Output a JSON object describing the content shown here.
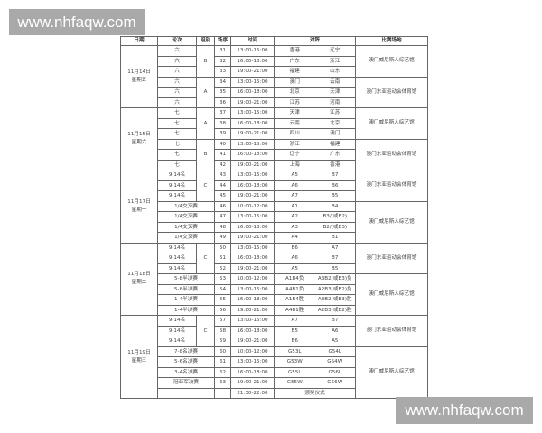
{
  "watermarks": [
    "www.nhfaqw.com",
    "www.nhfaqw.com"
  ],
  "headers": {
    "date": "日期",
    "round": "轮次",
    "group": "组别",
    "no": "场序",
    "time": "时间",
    "match": "对阵",
    "venue": "比赛场地"
  },
  "venues": [
    "澳门威尼斯人综艺馆",
    "澳门东亚运动会体育馆"
  ],
  "days": [
    {
      "date": "11月14日",
      "weekday": "星期五",
      "matches": [
        {
          "round": "六",
          "group": "B",
          "no": "31",
          "time": "13:00-15:00",
          "home": "香港",
          "away": "辽宁",
          "venue": 0
        },
        {
          "round": "六",
          "group": "B",
          "no": "32",
          "time": "16:00-18:00",
          "home": "广东",
          "away": "浙江",
          "venue": 0
        },
        {
          "round": "六",
          "group": "B",
          "no": "33",
          "time": "19:00-21:00",
          "home": "福建",
          "away": "山东",
          "venue": 0
        },
        {
          "round": "六",
          "group": "A",
          "no": "34",
          "time": "13:00-15:00",
          "home": "澳门",
          "away": "云南",
          "venue": 1
        },
        {
          "round": "六",
          "group": "A",
          "no": "35",
          "time": "16:00-18:00",
          "home": "北京",
          "away": "天津",
          "venue": 1
        },
        {
          "round": "六",
          "group": "A",
          "no": "36",
          "time": "19:00-21:00",
          "home": "江苏",
          "away": "河南",
          "venue": 1
        }
      ]
    },
    {
      "date": "11月15日",
      "weekday": "星期六",
      "matches": [
        {
          "round": "七",
          "group": "A",
          "no": "37",
          "time": "13:00-15:00",
          "home": "天津",
          "away": "江苏",
          "venue": 0
        },
        {
          "round": "七",
          "group": "A",
          "no": "38",
          "time": "16:00-18:00",
          "home": "云南",
          "away": "北京",
          "venue": 0
        },
        {
          "round": "七",
          "group": "A",
          "no": "39",
          "time": "19:00-21:00",
          "home": "四川",
          "away": "澳门",
          "venue": 0
        },
        {
          "round": "七",
          "group": "B",
          "no": "40",
          "time": "13:00-15:00",
          "home": "浙江",
          "away": "福建",
          "venue": 1
        },
        {
          "round": "七",
          "group": "B",
          "no": "41",
          "time": "16:00-18:00",
          "home": "辽宁",
          "away": "广东",
          "venue": 1
        },
        {
          "round": "七",
          "group": "B",
          "no": "42",
          "time": "19:00-21:00",
          "home": "上海",
          "away": "香港",
          "venue": 1
        }
      ]
    },
    {
      "date": "11月17日",
      "weekday": "星期一",
      "matches": [
        {
          "round": "9-14名",
          "group": "C",
          "no": "43",
          "time": "13:00-15:00",
          "home": "A5",
          "away": "B7",
          "venue": 1
        },
        {
          "round": "9-14名",
          "group": "C",
          "no": "44",
          "time": "16:00-18:00",
          "home": "A6",
          "away": "B6",
          "venue": 1
        },
        {
          "round": "9-14名",
          "group": "C",
          "no": "45",
          "time": "19:00-21:00",
          "home": "A7",
          "away": "B5",
          "venue": 1
        },
        {
          "round": "1/4交叉赛",
          "group": "",
          "no": "46",
          "time": "10:00-12:00",
          "home": "A1",
          "away": "B4",
          "venue": 0
        },
        {
          "round": "1/4交叉赛",
          "group": "",
          "no": "47",
          "time": "13:00-15:00",
          "home": "A2",
          "away": "B3/(或B2)",
          "venue": 0
        },
        {
          "round": "1/4交叉赛",
          "group": "",
          "no": "48",
          "time": "16:00-18:00",
          "home": "A3",
          "away": "B2/(或B3)",
          "venue": 0
        },
        {
          "round": "1/4交叉赛",
          "group": "",
          "no": "49",
          "time": "19:00-21:00",
          "home": "A4",
          "away": "B1",
          "venue": 0
        }
      ]
    },
    {
      "date": "11月18日",
      "weekday": "星期二",
      "matches": [
        {
          "round": "9-14名",
          "group": "C",
          "no": "50",
          "time": "13:00-15:00",
          "home": "B6",
          "away": "A7",
          "venue": 1
        },
        {
          "round": "9-14名",
          "group": "C",
          "no": "51",
          "time": "16:00-18:00",
          "home": "A6",
          "away": "B7",
          "venue": 1
        },
        {
          "round": "9-14名",
          "group": "C",
          "no": "52",
          "time": "19:00-21:00",
          "home": "A5",
          "away": "B5",
          "venue": 1
        },
        {
          "round": "5-8半决赛",
          "group": "",
          "no": "53",
          "time": "10:00-12:00",
          "home": "A1B4负",
          "away": "A3B2(或B3)负",
          "venue": 0
        },
        {
          "round": "5-8半决赛",
          "group": "",
          "no": "54",
          "time": "13:00-15:00",
          "home": "A4B1负",
          "away": "A2B3(或B2)负",
          "venue": 0
        },
        {
          "round": "1-4半决赛",
          "group": "",
          "no": "55",
          "time": "16:00-18:00",
          "home": "A1B4胜",
          "away": "A3B2(或B3)胜",
          "venue": 0
        },
        {
          "round": "1-4半决赛",
          "group": "",
          "no": "56",
          "time": "19:00-21:00",
          "home": "A4B1胜",
          "away": "A2B3(或B2)胜",
          "venue": 0
        }
      ]
    },
    {
      "date": "11月19日",
      "weekday": "星期三",
      "matches": [
        {
          "round": "9-14名",
          "group": "C",
          "no": "57",
          "time": "13:00-15:00",
          "home": "A7",
          "away": "B7",
          "venue": 1
        },
        {
          "round": "9-14名",
          "group": "C",
          "no": "58",
          "time": "16:00-18:00",
          "home": "B5",
          "away": "A6",
          "venue": 1
        },
        {
          "round": "9-14名",
          "group": "C",
          "no": "59",
          "time": "19:00-21:00",
          "home": "B6",
          "away": "A5",
          "venue": 1
        },
        {
          "round": "7-8名决赛",
          "group": "",
          "no": "60",
          "time": "10:00-12:00",
          "home": "G53L",
          "away": "G54L",
          "venue": 0
        },
        {
          "round": "5-6名决赛",
          "group": "",
          "no": "61",
          "time": "13:00-15:00",
          "home": "G53W",
          "away": "G54W",
          "venue": 0
        },
        {
          "round": "3-4名决赛",
          "group": "",
          "no": "62",
          "time": "16:00-18:00",
          "home": "G55L",
          "away": "G56L",
          "venue": 0
        },
        {
          "round": "冠亚军决赛",
          "group": "",
          "no": "63",
          "time": "19:00-21:00",
          "home": "G55W",
          "away": "G56W",
          "venue": 0
        },
        {
          "round": "",
          "group": "",
          "no": "",
          "time": "21:30-22:00",
          "ceremony": "颁奖仪式",
          "venue": 0
        }
      ]
    }
  ]
}
